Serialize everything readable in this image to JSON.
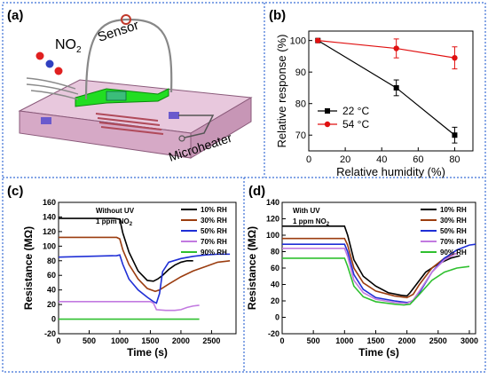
{
  "panel_a": {
    "label": "(a)",
    "gas_label": "NO",
    "gas_sub": "2",
    "sensor_label": "Sensor",
    "heater_label": "Microheater"
  },
  "colors": {
    "border": "#3b6fd6",
    "black_series": "#000000",
    "red_series": "#e01010",
    "brown": "#9b3d10",
    "blue": "#1f2fd6",
    "violet": "#c27ae0",
    "green": "#2fc02f",
    "heater": "#c98ab5",
    "electrode": "#22dd22"
  },
  "chart_data": [
    {
      "type": "line",
      "panel": "(b)",
      "xlabel": "Relative humidity (%)",
      "ylabel": "Relative response (%)",
      "xlim": [
        0,
        90
      ],
      "ylim": [
        65,
        103
      ],
      "xticks": [
        0,
        20,
        40,
        60,
        80
      ],
      "yticks": [
        70,
        80,
        90,
        100
      ],
      "legend_position": "lower-left",
      "series": [
        {
          "name": "22 °C",
          "color": "#000000",
          "marker": "square",
          "x": [
            5,
            48,
            80
          ],
          "y": [
            100,
            85,
            70
          ],
          "err": [
            0,
            2.5,
            2.5
          ]
        },
        {
          "name": "54 °C",
          "color": "#e01010",
          "marker": "circle",
          "x": [
            5,
            48,
            80
          ],
          "y": [
            100,
            97.5,
            94.5
          ],
          "err": [
            0,
            3,
            3.5
          ]
        }
      ]
    },
    {
      "type": "line",
      "panel": "(c)",
      "annotation_line1": "Without UV",
      "annotation_line2": "1 ppm NO",
      "annotation_sub": "2",
      "xlabel": "Time (s)",
      "ylabel": "Resistance (MΩ)",
      "xlim": [
        0,
        2900
      ],
      "ylim": [
        -20,
        160
      ],
      "xticks": [
        0,
        500,
        1000,
        1500,
        2000,
        2500
      ],
      "yticks": [
        -20,
        0,
        20,
        40,
        60,
        80,
        100,
        120,
        140,
        160
      ],
      "legend_position": "top-right",
      "series": [
        {
          "name": "10% RH",
          "color": "#000000",
          "x": [
            0,
            900,
            1000,
            1050,
            1150,
            1300,
            1450,
            1550,
            1620,
            1700,
            1800,
            1900,
            2000,
            2100,
            2200
          ],
          "y": [
            138,
            138,
            137,
            118,
            92,
            66,
            53,
            52,
            55,
            60,
            68,
            74,
            78,
            80,
            80
          ]
        },
        {
          "name": "30% RH",
          "color": "#9b3d10",
          "x": [
            0,
            950,
            1000,
            1050,
            1150,
            1300,
            1450,
            1580,
            1650,
            1800,
            2000,
            2200,
            2400,
            2600,
            2800
          ],
          "y": [
            112,
            112,
            110,
            95,
            75,
            55,
            42,
            38,
            40,
            48,
            58,
            66,
            72,
            78,
            80
          ]
        },
        {
          "name": "50% RH",
          "color": "#1f2fd6",
          "x": [
            0,
            950,
            1000,
            1050,
            1150,
            1300,
            1450,
            1550,
            1600,
            1650,
            1700,
            1800,
            2000,
            2200,
            2400,
            2600,
            2800
          ],
          "y": [
            85,
            87,
            88,
            75,
            55,
            40,
            30,
            24,
            22,
            35,
            65,
            78,
            83,
            86,
            88,
            89,
            89
          ]
        },
        {
          "name": "70% RH",
          "color": "#c27ae0",
          "x": [
            0,
            1000,
            1500,
            1550,
            1600,
            1750,
            1900,
            2000,
            2100,
            2200,
            2300
          ],
          "y": [
            24,
            24,
            24,
            22,
            13,
            12,
            12,
            13,
            16,
            18,
            19
          ]
        },
        {
          "name": "90% RH",
          "color": "#2fc02f",
          "x": [
            0,
            1000,
            1500,
            2000,
            2300
          ],
          "y": [
            0,
            0,
            0,
            0,
            0
          ]
        }
      ]
    },
    {
      "type": "line",
      "panel": "(d)",
      "annotation_line1": "With UV",
      "annotation_line2": "1 ppm NO",
      "annotation_sub": "2",
      "xlabel": "Time (s)",
      "ylabel": "Resistance (MΩ)",
      "xlim": [
        0,
        3100
      ],
      "ylim": [
        -20,
        140
      ],
      "xticks": [
        0,
        500,
        1000,
        1500,
        2000,
        2500,
        3000
      ],
      "yticks": [
        -20,
        0,
        20,
        40,
        60,
        80,
        100,
        120,
        140
      ],
      "legend_position": "top-right",
      "series": [
        {
          "name": "10% RH",
          "color": "#000000",
          "x": [
            0,
            1000,
            1050,
            1150,
            1300,
            1500,
            1700,
            1900,
            2000,
            2050,
            2150,
            2300,
            2500,
            2700,
            2850
          ],
          "y": [
            111,
            111,
            100,
            70,
            50,
            38,
            30,
            27,
            26,
            30,
            40,
            55,
            65,
            72,
            75
          ]
        },
        {
          "name": "30% RH",
          "color": "#9b3d10",
          "x": [
            0,
            1000,
            1050,
            1150,
            1300,
            1500,
            1800,
            2000,
            2100,
            2200,
            2400,
            2600,
            2800
          ],
          "y": [
            96,
            96,
            88,
            60,
            42,
            32,
            26,
            24,
            28,
            40,
            60,
            72,
            78
          ]
        },
        {
          "name": "50% RH",
          "color": "#1f2fd6",
          "x": [
            0,
            1000,
            1050,
            1150,
            1300,
            1500,
            1800,
            2000,
            2100,
            2200,
            2400,
            2600,
            2800,
            3000,
            3100
          ],
          "y": [
            89,
            89,
            80,
            52,
            34,
            24,
            20,
            18,
            20,
            30,
            55,
            72,
            82,
            88,
            89
          ]
        },
        {
          "name": "70% RH",
          "color": "#c27ae0",
          "x": [
            0,
            1000,
            1050,
            1150,
            1300,
            1500,
            1800,
            2000,
            2100,
            2200,
            2400,
            2600,
            2800
          ],
          "y": [
            84,
            84,
            74,
            45,
            30,
            22,
            18,
            17,
            21,
            32,
            55,
            70,
            78
          ]
        },
        {
          "name": "90% RH",
          "color": "#2fc02f",
          "x": [
            0,
            1000,
            1050,
            1150,
            1300,
            1500,
            1800,
            1950,
            2050,
            2200,
            2400,
            2600,
            2800,
            3000
          ],
          "y": [
            72,
            72,
            62,
            38,
            25,
            19,
            16,
            15,
            16,
            28,
            45,
            55,
            60,
            62
          ]
        }
      ]
    }
  ]
}
